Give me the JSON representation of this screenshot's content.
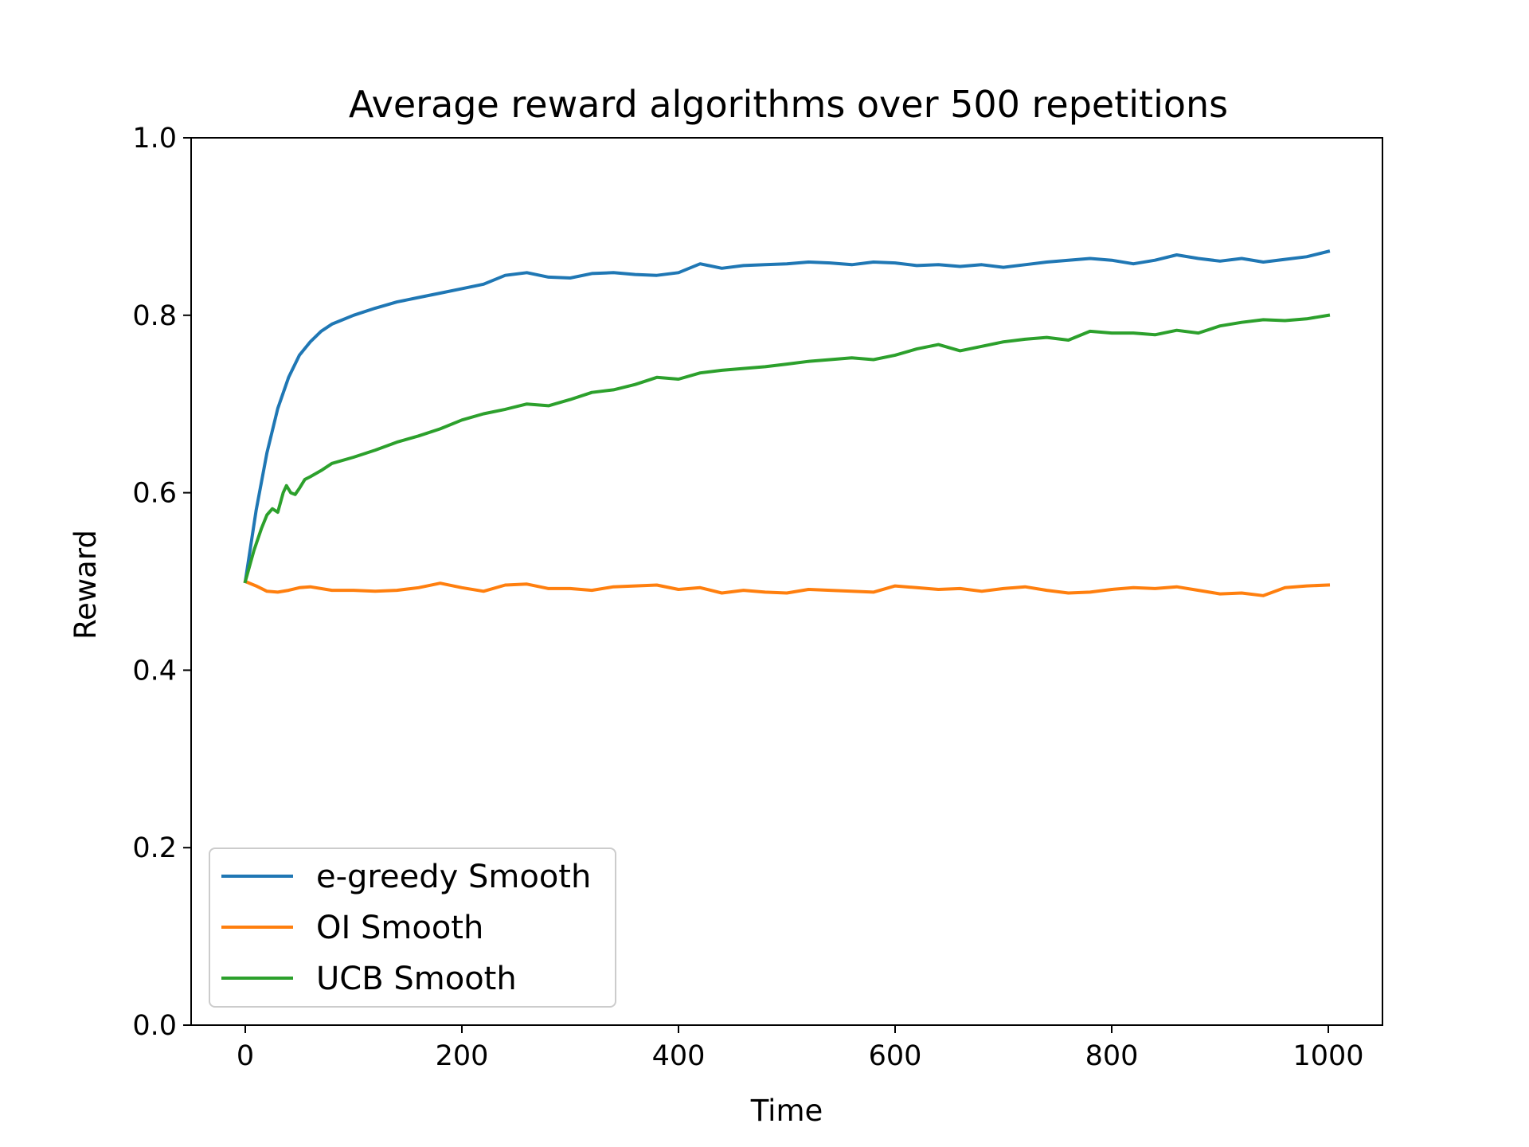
{
  "chart_data": {
    "type": "line",
    "title": "Average reward algorithms over 500 repetitions",
    "xlabel": "Time",
    "ylabel": "Reward",
    "xlim": [
      -50,
      1050
    ],
    "ylim": [
      0.0,
      1.0
    ],
    "xticks": [
      0,
      200,
      400,
      600,
      800,
      1000
    ],
    "xtick_labels": [
      "0",
      "200",
      "400",
      "600",
      "800",
      "1000"
    ],
    "yticks": [
      0.0,
      0.2,
      0.4,
      0.6,
      0.8,
      1.0
    ],
    "ytick_labels": [
      "0.0",
      "0.2",
      "0.4",
      "0.6",
      "0.8",
      "1.0"
    ],
    "grid": false,
    "legend_position": "lower-left",
    "series": [
      {
        "name": "e-greedy Smooth",
        "color": "#1f77b4",
        "x": [
          0,
          10,
          20,
          30,
          40,
          50,
          60,
          70,
          80,
          90,
          100,
          120,
          140,
          160,
          180,
          200,
          220,
          240,
          260,
          280,
          300,
          320,
          340,
          360,
          380,
          400,
          420,
          440,
          460,
          480,
          500,
          520,
          540,
          560,
          580,
          600,
          620,
          640,
          660,
          680,
          700,
          720,
          740,
          760,
          780,
          800,
          820,
          840,
          860,
          880,
          900,
          920,
          940,
          960,
          980,
          1000
        ],
        "y": [
          0.5,
          0.58,
          0.645,
          0.695,
          0.73,
          0.755,
          0.77,
          0.782,
          0.79,
          0.795,
          0.8,
          0.808,
          0.815,
          0.82,
          0.825,
          0.83,
          0.835,
          0.845,
          0.848,
          0.843,
          0.842,
          0.847,
          0.848,
          0.846,
          0.845,
          0.848,
          0.858,
          0.853,
          0.856,
          0.857,
          0.858,
          0.86,
          0.859,
          0.857,
          0.86,
          0.859,
          0.856,
          0.857,
          0.855,
          0.857,
          0.854,
          0.857,
          0.86,
          0.862,
          0.864,
          0.862,
          0.858,
          0.862,
          0.868,
          0.864,
          0.861,
          0.864,
          0.86,
          0.863,
          0.866,
          0.872
        ]
      },
      {
        "name": "OI Smooth",
        "color": "#ff7f0e",
        "x": [
          0,
          10,
          20,
          30,
          40,
          50,
          60,
          80,
          100,
          120,
          140,
          160,
          180,
          200,
          220,
          240,
          260,
          280,
          300,
          320,
          340,
          360,
          380,
          400,
          420,
          440,
          460,
          480,
          500,
          520,
          540,
          560,
          580,
          600,
          620,
          640,
          660,
          680,
          700,
          720,
          740,
          760,
          780,
          800,
          820,
          840,
          860,
          880,
          900,
          920,
          940,
          960,
          980,
          1000
        ],
        "y": [
          0.5,
          0.495,
          0.489,
          0.488,
          0.49,
          0.493,
          0.494,
          0.49,
          0.49,
          0.489,
          0.49,
          0.493,
          0.498,
          0.493,
          0.489,
          0.496,
          0.497,
          0.492,
          0.492,
          0.49,
          0.494,
          0.495,
          0.496,
          0.491,
          0.493,
          0.487,
          0.49,
          0.488,
          0.487,
          0.491,
          0.49,
          0.489,
          0.488,
          0.495,
          0.493,
          0.491,
          0.492,
          0.489,
          0.492,
          0.494,
          0.49,
          0.487,
          0.488,
          0.491,
          0.493,
          0.492,
          0.494,
          0.49,
          0.486,
          0.487,
          0.484,
          0.493,
          0.495,
          0.496
        ]
      },
      {
        "name": "UCB Smooth",
        "color": "#2ca02c",
        "x": [
          0,
          8,
          15,
          20,
          25,
          30,
          35,
          38,
          42,
          46,
          50,
          55,
          60,
          70,
          80,
          100,
          120,
          140,
          160,
          180,
          200,
          220,
          240,
          260,
          280,
          300,
          320,
          340,
          360,
          380,
          400,
          420,
          440,
          460,
          480,
          500,
          520,
          540,
          560,
          580,
          600,
          620,
          640,
          660,
          680,
          700,
          720,
          740,
          760,
          780,
          800,
          820,
          840,
          860,
          880,
          900,
          920,
          940,
          960,
          980,
          1000
        ],
        "y": [
          0.5,
          0.535,
          0.56,
          0.575,
          0.582,
          0.578,
          0.6,
          0.608,
          0.6,
          0.598,
          0.605,
          0.615,
          0.618,
          0.625,
          0.633,
          0.64,
          0.648,
          0.657,
          0.664,
          0.672,
          0.682,
          0.689,
          0.694,
          0.7,
          0.698,
          0.705,
          0.713,
          0.716,
          0.722,
          0.73,
          0.728,
          0.735,
          0.738,
          0.74,
          0.742,
          0.745,
          0.748,
          0.75,
          0.752,
          0.75,
          0.755,
          0.762,
          0.767,
          0.76,
          0.765,
          0.77,
          0.773,
          0.775,
          0.772,
          0.782,
          0.78,
          0.78,
          0.778,
          0.783,
          0.78,
          0.788,
          0.792,
          0.795,
          0.794,
          0.796,
          0.8
        ]
      }
    ]
  }
}
